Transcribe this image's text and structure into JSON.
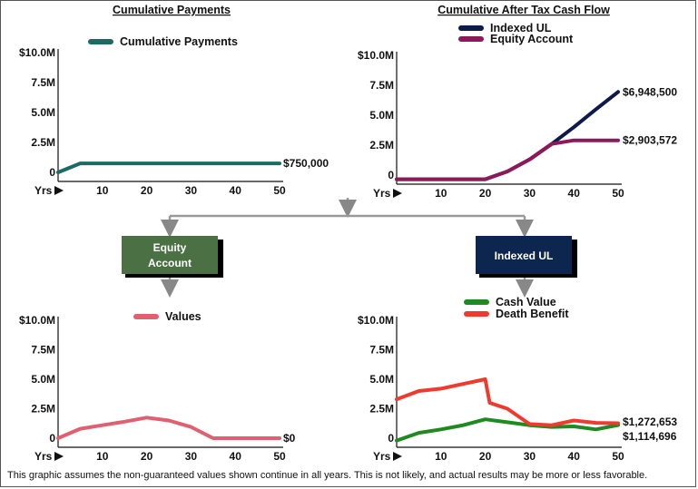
{
  "chart_data": [
    {
      "type": "line",
      "title": "Cumulative Payments",
      "x_start_label": "Yrs",
      "xticks": [
        10,
        20,
        30,
        40,
        50
      ],
      "yticks": [
        "0",
        "2.5M",
        "5.0M",
        "7.5M",
        "$10.0M"
      ],
      "ylim": [
        0,
        10000000
      ],
      "xlim": [
        0,
        50
      ],
      "series": [
        {
          "name": "Cumulative Payments",
          "color": "#1a6b64",
          "x": [
            0,
            5,
            50
          ],
          "y": [
            0,
            750000,
            750000
          ]
        }
      ],
      "annotations": [
        {
          "label": "$750,000",
          "y": 750000
        }
      ]
    },
    {
      "type": "line",
      "title": "Cumulative After Tax Cash Flow",
      "x_start_label": "Yrs",
      "xticks": [
        10,
        20,
        30,
        40,
        50
      ],
      "yticks": [
        "0",
        "2.5M",
        "5.0M",
        "7.5M",
        "$10.0M"
      ],
      "ylim": [
        0,
        10000000
      ],
      "xlim": [
        0,
        50
      ],
      "series": [
        {
          "name": "Indexed UL",
          "color": "#0d1a4a",
          "x": [
            0,
            20,
            25,
            30,
            35,
            40,
            45,
            50
          ],
          "y": [
            -350000,
            -350000,
            300000,
            1300000,
            2600000,
            4000000,
            5500000,
            6948500
          ]
        },
        {
          "name": "Equity Account",
          "color": "#8c1a5a",
          "x": [
            0,
            20,
            25,
            30,
            35,
            40,
            45,
            50
          ],
          "y": [
            -350000,
            -350000,
            300000,
            1300000,
            2600000,
            2903572,
            2903572,
            2903572
          ]
        }
      ],
      "annotations": [
        {
          "label": "$6,948,500",
          "y": 6948500
        },
        {
          "label": "$2,903,572",
          "y": 2903572
        }
      ]
    },
    {
      "type": "line",
      "title": "",
      "x_start_label": "Yrs",
      "xticks": [
        10,
        20,
        30,
        40,
        50
      ],
      "yticks": [
        "0",
        "2.5M",
        "5.0M",
        "7.5M",
        "$10.0M"
      ],
      "ylim": [
        0,
        10000000
      ],
      "xlim": [
        0,
        50
      ],
      "series": [
        {
          "name": "Values",
          "color": "#e06070",
          "x": [
            0,
            5,
            10,
            15,
            20,
            25,
            30,
            35,
            40,
            45,
            50
          ],
          "y": [
            0,
            800000,
            1100000,
            1400000,
            1750000,
            1500000,
            950000,
            0,
            0,
            0,
            0
          ]
        }
      ],
      "annotations": [
        {
          "label": "$0",
          "y": 0
        }
      ]
    },
    {
      "type": "line",
      "title": "",
      "x_start_label": "Yrs",
      "xticks": [
        10,
        20,
        30,
        40,
        50
      ],
      "yticks": [
        "0",
        "2.5M",
        "5.0M",
        "7.5M",
        "$10.0M"
      ],
      "ylim": [
        0,
        10000000
      ],
      "xlim": [
        0,
        50
      ],
      "series": [
        {
          "name": "Cash Value",
          "color": "#1f8a1f",
          "x": [
            0,
            5,
            10,
            15,
            20,
            25,
            30,
            35,
            40,
            45,
            50
          ],
          "y": [
            -200000,
            450000,
            750000,
            1100000,
            1600000,
            1350000,
            1100000,
            950000,
            1000000,
            750000,
            1114696
          ]
        },
        {
          "name": "Death Benefit",
          "color": "#f03a2e",
          "x": [
            0,
            5,
            10,
            15,
            20,
            21,
            25,
            30,
            35,
            40,
            45,
            50
          ],
          "y": [
            3300000,
            4000000,
            4200000,
            4600000,
            5000000,
            3000000,
            2500000,
            1200000,
            1100000,
            1500000,
            1300000,
            1272653
          ]
        }
      ],
      "annotations": [
        {
          "label": "$1,272,653",
          "y": 1272653
        },
        {
          "label": "$1,114,696",
          "y": 1114696
        }
      ]
    }
  ],
  "flow": {
    "box_left_label": "Equity\nAccount",
    "box_left_line1": "Equity",
    "box_left_line2": "Account",
    "box_left_color": "#4a7044",
    "box_right_label": "Indexed UL",
    "box_right_color": "#0d2650"
  },
  "disclaimer": "This graphic assumes the non-guaranteed values shown continue in all years. This is not likely, and actual results may be more or less favorable."
}
